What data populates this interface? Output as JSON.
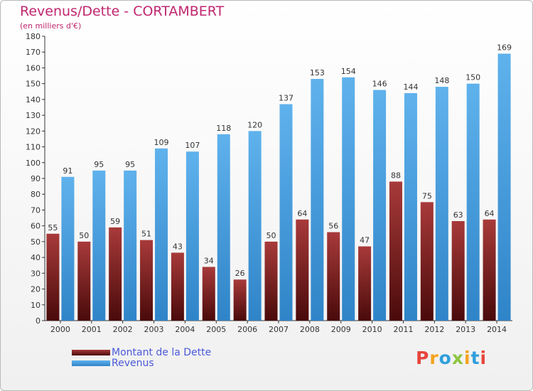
{
  "header": {
    "title": "Revenus/Dette - CORTAMBERT",
    "subtitle": "(en milliers d'€)"
  },
  "colors": {
    "dette": "#7a1c1c",
    "revenus": "#3d9be0",
    "title": "#c0266e"
  },
  "logo": {
    "letters": [
      "P",
      "r",
      "o",
      "x",
      "i",
      "t",
      "i"
    ],
    "colors": [
      "#e8453c",
      "#f4a21d",
      "#2f9fdc",
      "#8cc63e",
      "#f4a21d",
      "#2f9fdc",
      "#e8453c"
    ]
  },
  "chart_data": {
    "type": "bar",
    "categories": [
      "2000",
      "2001",
      "2002",
      "2003",
      "2004",
      "2005",
      "2006",
      "2007",
      "2008",
      "2009",
      "2010",
      "2011",
      "2012",
      "2013",
      "2014"
    ],
    "series": [
      {
        "name": "Montant de la Dette",
        "values": [
          55,
          50,
          59,
          51,
          43,
          34,
          26,
          50,
          64,
          56,
          47,
          88,
          75,
          63,
          64
        ]
      },
      {
        "name": "Revenus",
        "values": [
          91,
          95,
          95,
          109,
          107,
          118,
          120,
          137,
          153,
          154,
          146,
          144,
          148,
          150,
          169
        ]
      }
    ],
    "ylim": [
      0,
      180
    ],
    "ytick_step": 10,
    "grid": false,
    "legend": "bottom-left"
  }
}
